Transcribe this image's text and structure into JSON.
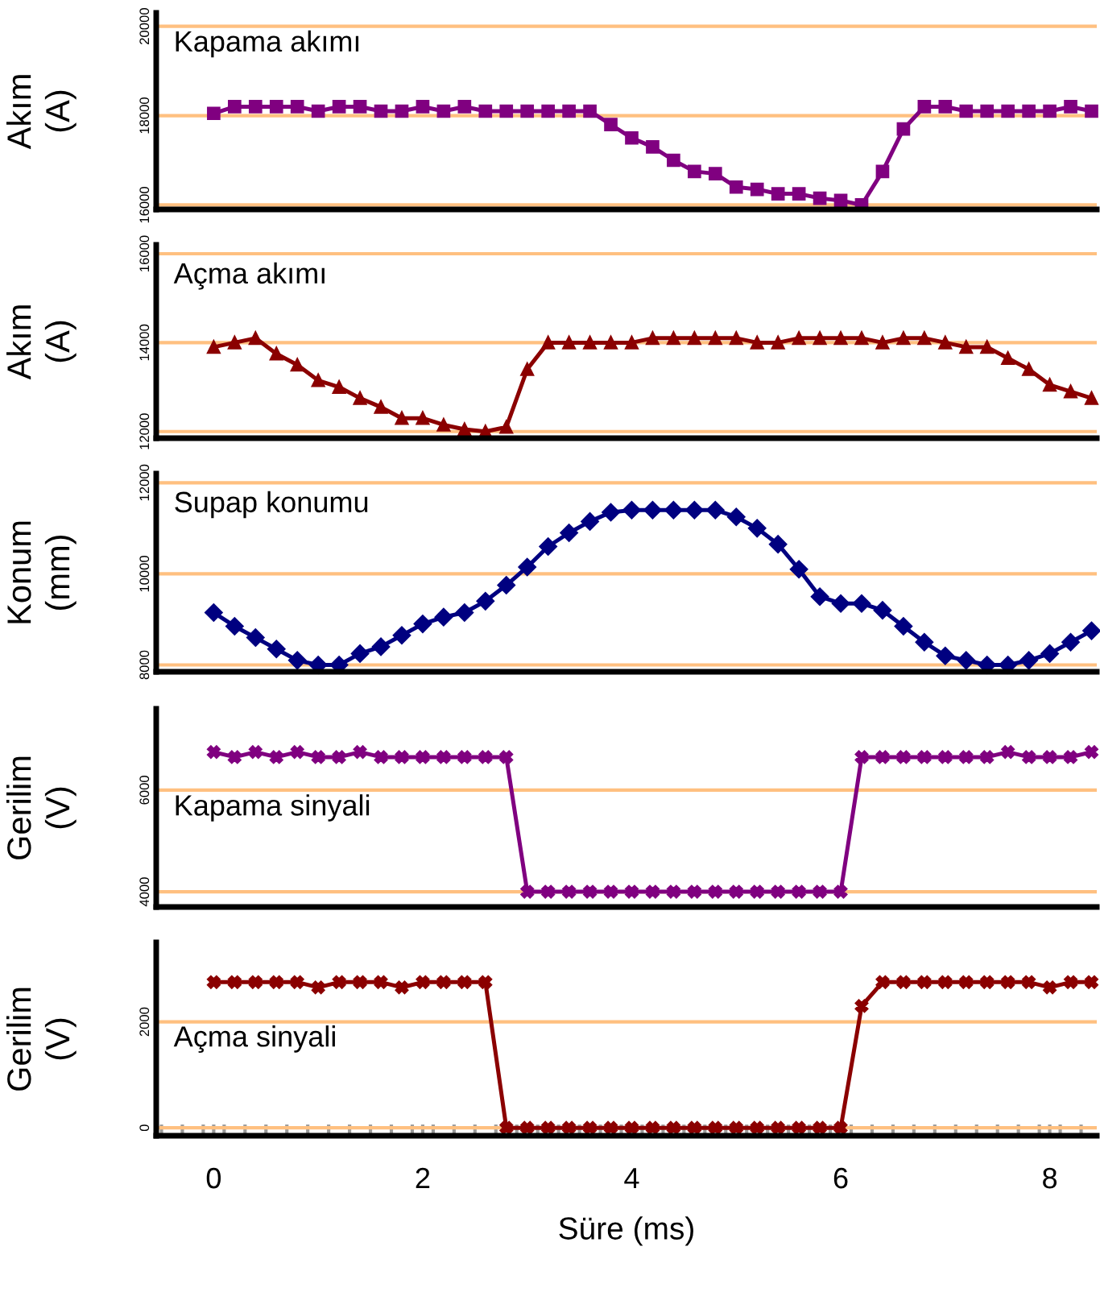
{
  "chart_data": [
    {
      "type": "line",
      "ylabel": "Akım\n(A)",
      "xlim": [
        -0.55,
        8.45
      ],
      "ylim": [
        15900,
        20300
      ],
      "yticks": [
        16000,
        18000,
        20000
      ],
      "grid": "y",
      "legend": "top left",
      "marker": "square",
      "line_style": "solid",
      "tick_labels": "y",
      "x": [
        0,
        0.2,
        0.4,
        0.6,
        0.8,
        1.0,
        1.2,
        1.4,
        1.6,
        1.8,
        2.0,
        2.2,
        2.4,
        2.6,
        2.8,
        3.0,
        3.2,
        3.4,
        3.6,
        3.8,
        4.0,
        4.2,
        4.4,
        4.6,
        4.8,
        5.0,
        5.2,
        5.4,
        5.6,
        5.8,
        6.0,
        6.2,
        6.4,
        6.6,
        6.8,
        7.0,
        7.2,
        7.4,
        7.6,
        7.8,
        8.0,
        8.2,
        8.4
      ],
      "series": [
        {
          "name": "Kapama akımı",
          "color": "#800080",
          "values": [
            18050,
            18200,
            18200,
            18200,
            18200,
            18100,
            18200,
            18200,
            18100,
            18100,
            18200,
            18100,
            18200,
            18100,
            18100,
            18100,
            18100,
            18100,
            18100,
            17800,
            17500,
            17300,
            17000,
            16750,
            16700,
            16400,
            16350,
            16250,
            16250,
            16150,
            16100,
            16000,
            16750,
            17700,
            18200,
            18200,
            18100,
            18100,
            18100,
            18100,
            18100,
            18200,
            18100
          ]
        }
      ]
    },
    {
      "type": "line",
      "ylabel": "Akım\n(A)",
      "xlim": [
        -0.55,
        8.45
      ],
      "ylim": [
        11850,
        16200
      ],
      "yticks": [
        12000,
        14000,
        16000
      ],
      "grid": "y",
      "legend": "top left",
      "marker": "triangle",
      "line_style": "solid",
      "tick_labels": "y",
      "x": [
        0,
        0.2,
        0.4,
        0.6,
        0.8,
        1.0,
        1.2,
        1.4,
        1.6,
        1.8,
        2.0,
        2.2,
        2.4,
        2.6,
        2.8,
        3.0,
        3.2,
        3.4,
        3.6,
        3.8,
        4.0,
        4.2,
        4.4,
        4.6,
        4.8,
        5.0,
        5.2,
        5.4,
        5.6,
        5.8,
        6.0,
        6.2,
        6.4,
        6.6,
        6.8,
        7.0,
        7.2,
        7.4,
        7.6,
        7.8,
        8.0,
        8.2,
        8.4
      ],
      "series": [
        {
          "name": "Açma akımı",
          "color": "#8b0000",
          "values": [
            13900,
            14000,
            14100,
            13750,
            13500,
            13150,
            13000,
            12750,
            12550,
            12300,
            12300,
            12150,
            12050,
            12000,
            12100,
            13400,
            14000,
            14000,
            14000,
            14000,
            14000,
            14100,
            14100,
            14100,
            14100,
            14100,
            14000,
            14000,
            14100,
            14100,
            14100,
            14100,
            14000,
            14100,
            14100,
            14000,
            13900,
            13900,
            13650,
            13400,
            13050,
            12900,
            12750
          ]
        }
      ]
    },
    {
      "type": "line",
      "ylabel": "Konum\n(mm)",
      "xlim": [
        -0.55,
        8.45
      ],
      "ylim": [
        7850,
        12200
      ],
      "yticks": [
        8000,
        10000,
        12000
      ],
      "grid": "y",
      "legend": "top left",
      "marker": "diamond",
      "line_style": "solid",
      "tick_labels": "y",
      "x": [
        0,
        0.2,
        0.4,
        0.6,
        0.8,
        1.0,
        1.2,
        1.4,
        1.6,
        1.8,
        2.0,
        2.2,
        2.4,
        2.6,
        2.8,
        3.0,
        3.2,
        3.4,
        3.6,
        3.8,
        4.0,
        4.2,
        4.4,
        4.6,
        4.8,
        5.0,
        5.2,
        5.4,
        5.6,
        5.8,
        6.0,
        6.2,
        6.4,
        6.6,
        6.8,
        7.0,
        7.2,
        7.4,
        7.6,
        7.8,
        8.0,
        8.2,
        8.4
      ],
      "series": [
        {
          "name": "Supap konumu",
          "color": "#000080",
          "values": [
            9150,
            8850,
            8600,
            8350,
            8100,
            8000,
            8000,
            8250,
            8400,
            8650,
            8900,
            9050,
            9150,
            9400,
            9750,
            10150,
            10600,
            10900,
            11150,
            11350,
            11400,
            11400,
            11400,
            11400,
            11400,
            11250,
            11000,
            10650,
            10100,
            9500,
            9350,
            9350,
            9200,
            8850,
            8500,
            8200,
            8100,
            8000,
            8000,
            8100,
            8250,
            8500,
            8750
          ]
        }
      ]
    },
    {
      "type": "line",
      "ylabel": "Gerilim\n(V)",
      "xlim": [
        -0.55,
        8.45
      ],
      "ylim": [
        3700,
        7600
      ],
      "yticks": [
        4000,
        6000
      ],
      "grid": "y",
      "legend": "center left",
      "marker": "cross",
      "line_style": "solid",
      "tick_labels": "y",
      "x": [
        0,
        0.2,
        0.4,
        0.6,
        0.8,
        1.0,
        1.2,
        1.4,
        1.6,
        1.8,
        2.0,
        2.2,
        2.4,
        2.6,
        2.8,
        3.0,
        3.2,
        3.4,
        3.6,
        3.8,
        4.0,
        4.2,
        4.4,
        4.6,
        4.8,
        5.0,
        5.2,
        5.4,
        5.6,
        5.8,
        6.0,
        6.2,
        6.4,
        6.6,
        6.8,
        7.0,
        7.2,
        7.4,
        7.6,
        7.8,
        8.0,
        8.2,
        8.4
      ],
      "series": [
        {
          "name": "Kapama sinyali",
          "color": "#800080",
          "values": [
            6750,
            6650,
            6750,
            6650,
            6750,
            6650,
            6650,
            6750,
            6650,
            6650,
            6650,
            6650,
            6650,
            6650,
            6650,
            4000,
            4000,
            4000,
            4000,
            4000,
            4000,
            4000,
            4000,
            4000,
            4000,
            4000,
            4000,
            4000,
            4000,
            4000,
            4000,
            6650,
            6650,
            6650,
            6650,
            6650,
            6650,
            6650,
            6750,
            6650,
            6650,
            6650,
            6750
          ]
        }
      ]
    },
    {
      "type": "line",
      "ylabel": "Gerilim\n(V)",
      "xlabel": "Süre (ms)",
      "xlim": [
        -0.55,
        8.45
      ],
      "ylim": [
        -150,
        3500
      ],
      "yticks": [
        0,
        2000
      ],
      "xticks": [
        {
          "value": -0.5,
          "label": null
        },
        {
          "value": -0.3,
          "label": null
        },
        {
          "value": -0.1,
          "label": null
        },
        0,
        {
          "value": 0.1,
          "label": null
        },
        {
          "value": 0.3,
          "label": null
        },
        {
          "value": 0.5,
          "label": null
        },
        {
          "value": 0.7,
          "label": null
        },
        {
          "value": 0.9,
          "label": null
        },
        {
          "value": 1.1,
          "label": null
        },
        {
          "value": 1.3,
          "label": null
        },
        {
          "value": 1.5,
          "label": null
        },
        {
          "value": 1.7,
          "label": null
        },
        {
          "value": 1.9,
          "label": null
        },
        2,
        {
          "value": 2.1,
          "label": null
        },
        {
          "value": 2.3,
          "label": null
        },
        {
          "value": 2.5,
          "label": null
        },
        {
          "value": 2.7,
          "label": null
        },
        {
          "value": 2.9,
          "label": null
        },
        {
          "value": 3.1,
          "label": null
        },
        {
          "value": 3.3,
          "label": null
        },
        {
          "value": 3.5,
          "label": null
        },
        {
          "value": 3.7,
          "label": null
        },
        {
          "value": 3.9,
          "label": null
        },
        4,
        {
          "value": 4.1,
          "label": null
        },
        {
          "value": 4.3,
          "label": null
        },
        {
          "value": 4.5,
          "label": null
        },
        {
          "value": 4.7,
          "label": null
        },
        {
          "value": 4.9,
          "label": null
        },
        {
          "value": 5.1,
          "label": null
        },
        {
          "value": 5.3,
          "label": null
        },
        {
          "value": 5.5,
          "label": null
        },
        {
          "value": 5.7,
          "label": null
        },
        {
          "value": 5.9,
          "label": null
        },
        6,
        {
          "value": 6.1,
          "label": null
        },
        {
          "value": 6.3,
          "label": null
        },
        {
          "value": 6.5,
          "label": null
        },
        {
          "value": 6.7,
          "label": null
        },
        {
          "value": 6.9,
          "label": null
        },
        {
          "value": 7.1,
          "label": null
        },
        {
          "value": 7.3,
          "label": null
        },
        {
          "value": 7.5,
          "label": null
        },
        {
          "value": 7.7,
          "label": null
        },
        {
          "value": 7.9,
          "label": null
        },
        8,
        {
          "value": 8.1,
          "label": null
        },
        {
          "value": 8.3,
          "label": null
        }
      ],
      "grid": "y",
      "legend": "center left",
      "marker": "cross",
      "line_style": "solid",
      "x": [
        0,
        0.2,
        0.4,
        0.6,
        0.8,
        1.0,
        1.2,
        1.4,
        1.6,
        1.8,
        2.0,
        2.2,
        2.4,
        2.6,
        2.8,
        3.0,
        3.2,
        3.4,
        3.6,
        3.8,
        4.0,
        4.2,
        4.4,
        4.6,
        4.8,
        5.0,
        5.2,
        5.4,
        5.6,
        5.8,
        6.0,
        6.2,
        6.4,
        6.6,
        6.8,
        7.0,
        7.2,
        7.4,
        7.6,
        7.8,
        8.0,
        8.2,
        8.4
      ],
      "series": [
        {
          "name": "Açma sinyali",
          "color": "#8b0000",
          "values": [
            2750,
            2750,
            2750,
            2750,
            2750,
            2650,
            2750,
            2750,
            2750,
            2650,
            2750,
            2750,
            2750,
            2750,
            0,
            0,
            0,
            0,
            0,
            0,
            0,
            0,
            0,
            0,
            0,
            0,
            0,
            0,
            0,
            0,
            0,
            2300,
            2750,
            2750,
            2750,
            2750,
            2750,
            2750,
            2750,
            2750,
            2650,
            2750,
            2750
          ]
        }
      ]
    }
  ]
}
